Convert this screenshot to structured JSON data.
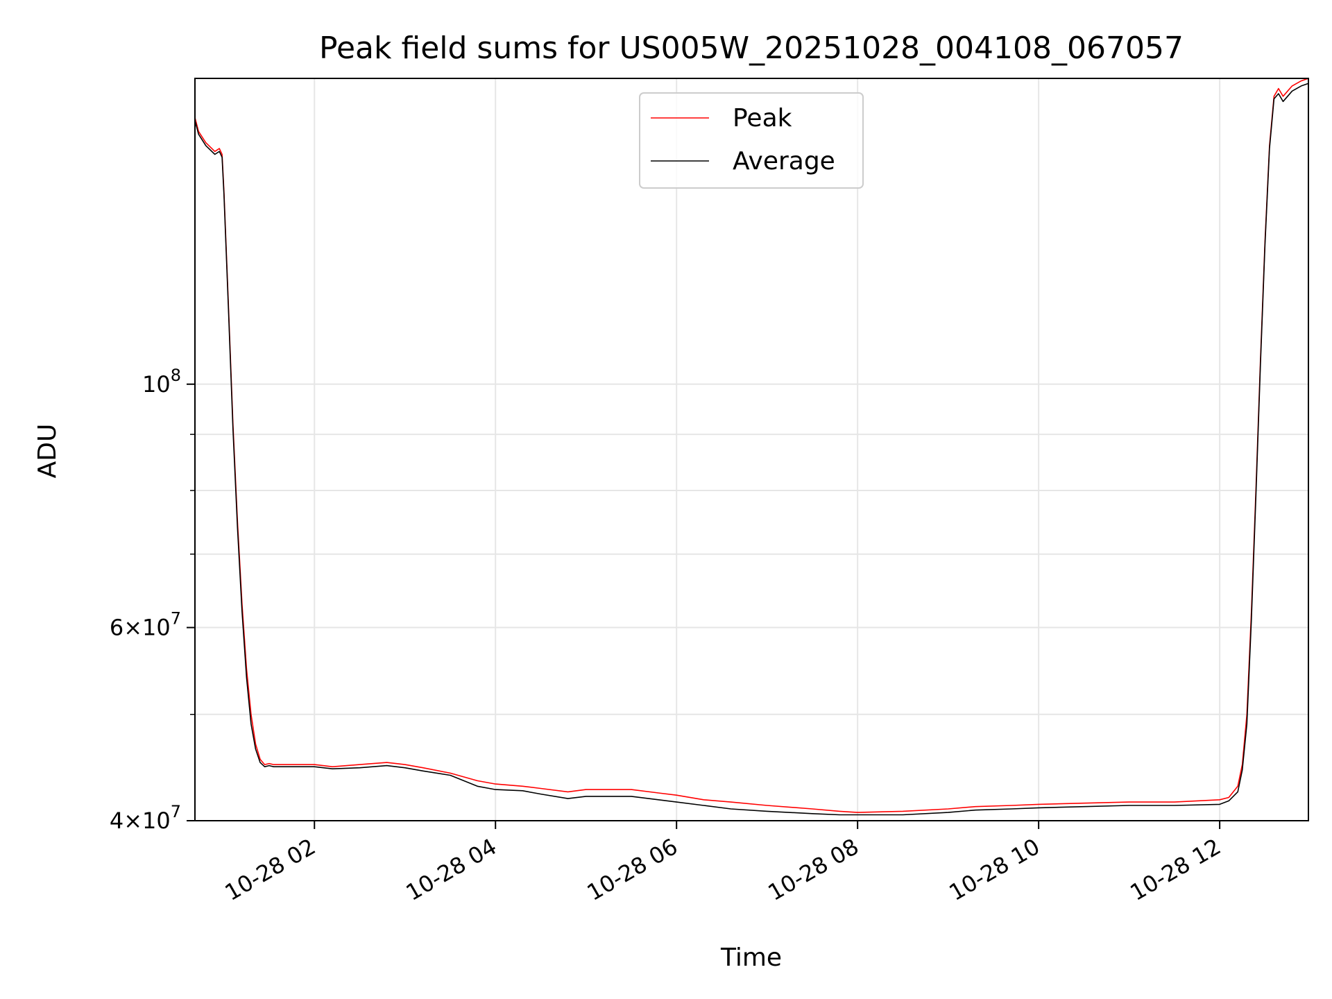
{
  "chart_data": {
    "type": "line",
    "title": "Peak field sums for US005W_20251028_004108_067057",
    "xlabel": "Time",
    "ylabel": "ADU",
    "yscale": "log",
    "xlim": [
      0.68,
      12.98
    ],
    "ylim": [
      40000000,
      190000000
    ],
    "grid": true,
    "legend_position": "top-center",
    "x_unit": "hours after 2025-10-28 00:00",
    "x_ticks": [
      {
        "value": 2,
        "label": "10-28 02"
      },
      {
        "value": 4,
        "label": "10-28 04"
      },
      {
        "value": 6,
        "label": "10-28 06"
      },
      {
        "value": 8,
        "label": "10-28 08"
      },
      {
        "value": 10,
        "label": "10-28 10"
      },
      {
        "value": 12,
        "label": "10-28 12"
      }
    ],
    "y_major_ticks": [
      {
        "value": 40000000,
        "mantissa": "4",
        "exponent": "7"
      },
      {
        "value": 60000000,
        "mantissa": "6",
        "exponent": "7"
      },
      {
        "value": 100000000,
        "mantissa": "",
        "exponent": "8"
      }
    ],
    "y_minor_ticks": [
      50000000,
      70000000,
      80000000,
      90000000
    ],
    "series": [
      {
        "name": "Peak",
        "color": "#ff0000",
        "x": [
          0.68,
          0.72,
          0.8,
          0.9,
          0.95,
          0.98,
          1.0,
          1.05,
          1.1,
          1.15,
          1.2,
          1.25,
          1.3,
          1.35,
          1.4,
          1.45,
          1.5,
          1.55,
          1.6,
          1.7,
          1.8,
          2.0,
          2.2,
          2.5,
          2.8,
          3.0,
          3.2,
          3.5,
          3.8,
          4.0,
          4.3,
          4.5,
          4.8,
          5.0,
          5.5,
          5.8,
          6.0,
          6.3,
          6.6,
          7.0,
          7.5,
          7.8,
          8.0,
          8.5,
          9.0,
          9.3,
          9.7,
          10.0,
          10.5,
          11.0,
          11.5,
          12.0,
          12.1,
          12.2,
          12.25,
          12.3,
          12.35,
          12.4,
          12.45,
          12.5,
          12.55,
          12.6,
          12.65,
          12.7,
          12.75,
          12.8,
          12.9,
          12.98
        ],
        "y": [
          175000000,
          170000000,
          166000000,
          163000000,
          164000000,
          162000000,
          150000000,
          118000000,
          92000000,
          75000000,
          63000000,
          55000000,
          50000000,
          47000000,
          45500000,
          45000000,
          45100000,
          45000000,
          45000000,
          45000000,
          45000000,
          45000000,
          44800000,
          45000000,
          45200000,
          45000000,
          44700000,
          44200000,
          43500000,
          43200000,
          43000000,
          42800000,
          42500000,
          42700000,
          42700000,
          42400000,
          42200000,
          41800000,
          41600000,
          41300000,
          41000000,
          40800000,
          40700000,
          40800000,
          41000000,
          41200000,
          41300000,
          41400000,
          41500000,
          41600000,
          41600000,
          41800000,
          42000000,
          43000000,
          45000000,
          50000000,
          62000000,
          80000000,
          105000000,
          135000000,
          165000000,
          183000000,
          186000000,
          183000000,
          185000000,
          187000000,
          189000000,
          190000000
        ]
      },
      {
        "name": "Average",
        "color": "#000000",
        "x": [
          0.68,
          0.72,
          0.8,
          0.9,
          0.95,
          0.98,
          1.0,
          1.05,
          1.1,
          1.15,
          1.2,
          1.25,
          1.3,
          1.35,
          1.4,
          1.45,
          1.5,
          1.55,
          1.6,
          1.7,
          1.8,
          2.0,
          2.2,
          2.5,
          2.8,
          3.0,
          3.2,
          3.5,
          3.8,
          4.0,
          4.3,
          4.5,
          4.8,
          5.0,
          5.5,
          5.8,
          6.0,
          6.3,
          6.6,
          7.0,
          7.5,
          7.8,
          8.0,
          8.5,
          9.0,
          9.3,
          9.7,
          10.0,
          10.5,
          11.0,
          11.5,
          12.0,
          12.1,
          12.2,
          12.25,
          12.3,
          12.35,
          12.4,
          12.45,
          12.5,
          12.55,
          12.6,
          12.65,
          12.7,
          12.75,
          12.8,
          12.9,
          12.98
        ],
        "y": [
          174000000,
          169000000,
          165000000,
          162000000,
          163000000,
          161000000,
          149000000,
          117000000,
          91000000,
          74000000,
          62000000,
          54000000,
          49000000,
          46500000,
          45200000,
          44800000,
          44900000,
          44800000,
          44800000,
          44800000,
          44800000,
          44800000,
          44600000,
          44700000,
          44900000,
          44700000,
          44400000,
          44000000,
          43000000,
          42700000,
          42600000,
          42300000,
          41900000,
          42100000,
          42100000,
          41800000,
          41600000,
          41300000,
          41000000,
          40800000,
          40600000,
          40500000,
          40500000,
          40500000,
          40700000,
          40900000,
          41000000,
          41100000,
          41200000,
          41300000,
          41300000,
          41400000,
          41700000,
          42500000,
          44500000,
          49000000,
          61000000,
          79000000,
          104000000,
          134000000,
          164000000,
          182000000,
          184000000,
          181000000,
          183000000,
          185000000,
          187000000,
          188000000
        ]
      }
    ]
  }
}
